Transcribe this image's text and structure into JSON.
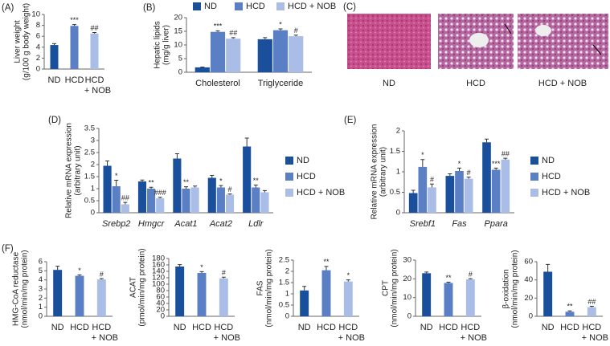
{
  "chart_data": [
    {
      "type": "bar",
      "panel_label": "(A)",
      "ylabel": "Liver weight",
      "yunit": "(g/100 g body weight)",
      "categories": [
        "ND",
        "HCD",
        [
          "HCD",
          "+ NOB"
        ]
      ],
      "values": [
        4.4,
        7.9,
        6.5
      ],
      "errors": [
        0.25,
        0.25,
        0.2
      ],
      "colors": [
        "#1a4f9c",
        "#5b7fc4",
        "#a9bde6"
      ],
      "marks": [
        null,
        "***",
        "##"
      ],
      "ylim": [
        0,
        10
      ],
      "yticks": [
        0,
        2,
        4,
        6,
        8,
        10
      ]
    },
    {
      "type": "grouped_bar",
      "panel_label": "(B)",
      "ylabel": "Hepatic lipids",
      "yunit": "(mg/g liver)",
      "legend": "top",
      "categories": [
        "Cholesterol",
        "Triglyceride"
      ],
      "series": [
        {
          "name": "ND",
          "color": "#1a4f9c",
          "values": [
            1.8,
            12.1
          ],
          "errors": [
            0.1,
            0.6
          ],
          "marks": [
            null,
            null
          ]
        },
        {
          "name": "HCD",
          "color": "#5b7fc4",
          "values": [
            14.8,
            15.4
          ],
          "errors": [
            0.4,
            0.5
          ],
          "marks": [
            "***",
            "*"
          ]
        },
        {
          "name": "HCD + NOB",
          "color": "#a9bde6",
          "values": [
            12.3,
            13.2
          ],
          "errors": [
            0.4,
            0.4
          ],
          "marks": [
            "##",
            "#"
          ]
        }
      ],
      "ylim": [
        0,
        20
      ],
      "yticks": [
        0,
        5,
        10,
        15,
        20
      ]
    },
    {
      "type": "grouped_bar",
      "panel_label": "(D)",
      "ylabel": "Relative mRNA expression",
      "yunit": "(arbitrary unit)",
      "legend": "right",
      "italic_categories": true,
      "categories": [
        "Srebp2",
        "Hmgcr",
        "Acat1",
        "Acat2",
        "Ldlr"
      ],
      "series": [
        {
          "name": "ND",
          "color": "#1a4f9c",
          "values": [
            1.95,
            1.3,
            2.25,
            1.45,
            2.75
          ],
          "errors": [
            0.2,
            0.06,
            0.2,
            0.1,
            0.35
          ],
          "marks": [
            null,
            null,
            null,
            null,
            null
          ]
        },
        {
          "name": "HCD",
          "color": "#5b7fc4",
          "values": [
            1.1,
            1.0,
            1.0,
            1.05,
            1.05
          ],
          "errors": [
            0.25,
            0.06,
            0.08,
            0.08,
            0.1
          ],
          "marks": [
            "*",
            "**",
            "**",
            "*",
            "**"
          ]
        },
        {
          "name": "HCD + NOB",
          "color": "#a9bde6",
          "values": [
            0.35,
            0.6,
            1.05,
            0.75,
            0.85
          ],
          "errors": [
            0.08,
            0.04,
            0.06,
            0.03,
            0.07
          ],
          "marks": [
            "##",
            "###",
            null,
            "#",
            null
          ]
        }
      ],
      "ylim": [
        0,
        3.5
      ],
      "yticks": [
        0,
        0.5,
        1,
        1.5,
        2,
        2.5,
        3,
        3.5
      ]
    },
    {
      "type": "grouped_bar",
      "panel_label": "(E)",
      "ylabel": "Relative mRNA expression",
      "yunit": "(arbitrary unit)",
      "legend": "right",
      "italic_categories": true,
      "categories": [
        "Srebf1",
        "Fas",
        "Ppara"
      ],
      "series": [
        {
          "name": "ND",
          "color": "#1a4f9c",
          "values": [
            0.48,
            0.9,
            1.72
          ],
          "errors": [
            0.07,
            0.05,
            0.08
          ],
          "marks": [
            null,
            null,
            null
          ]
        },
        {
          "name": "HCD",
          "color": "#5b7fc4",
          "values": [
            1.12,
            1.02,
            1.05
          ],
          "errors": [
            0.18,
            0.07,
            0.04
          ],
          "marks": [
            "*",
            "*",
            "***"
          ]
        },
        {
          "name": "HCD + NOB",
          "color": "#a9bde6",
          "values": [
            0.62,
            0.83,
            1.3
          ],
          "errors": [
            0.08,
            0.04,
            0.03
          ],
          "marks": [
            "#",
            "#",
            "##"
          ]
        }
      ],
      "ylim": [
        0,
        2
      ],
      "yticks": [
        0,
        0.5,
        1,
        1.5,
        2
      ]
    },
    {
      "type": "bar",
      "panel_label": "(F)",
      "ylabel": "HMG-CoA reductase",
      "yunit": "(nmol/min/mg protein)",
      "categories": [
        "ND",
        "HCD",
        [
          "HCD",
          "+ NOB"
        ]
      ],
      "values": [
        5.1,
        4.45,
        4.05
      ],
      "errors": [
        0.4,
        0.1,
        0.1
      ],
      "colors": [
        "#1a4f9c",
        "#5b7fc4",
        "#a9bde6"
      ],
      "marks": [
        null,
        "*",
        "#"
      ],
      "ylim": [
        0,
        6
      ],
      "yticks": [
        0,
        1,
        2,
        3,
        4,
        5,
        6
      ]
    },
    {
      "type": "bar",
      "ylabel": "ACAT",
      "yunit": "(pmol/min/mg protein)",
      "categories": [
        "ND",
        "HCD",
        [
          "HCD",
          "+ NOB"
        ]
      ],
      "values": [
        155,
        135,
        118
      ],
      "errors": [
        6,
        4,
        4
      ],
      "colors": [
        "#1a4f9c",
        "#5b7fc4",
        "#a9bde6"
      ],
      "marks": [
        null,
        "*",
        "#"
      ],
      "ylim": [
        0,
        180
      ],
      "yticks": [
        0,
        20,
        40,
        60,
        80,
        100,
        120,
        140,
        160,
        180
      ]
    },
    {
      "type": "bar",
      "ylabel": "FAS",
      "yunit": "(nmol/min/mg protein)",
      "categories": [
        "ND",
        "HCD",
        [
          "HCD",
          "+ NOB"
        ]
      ],
      "values": [
        1.15,
        2.05,
        1.55
      ],
      "errors": [
        0.18,
        0.17,
        0.07
      ],
      "colors": [
        "#1a4f9c",
        "#5b7fc4",
        "#a9bde6"
      ],
      "marks": [
        null,
        "**",
        "*"
      ],
      "ylim": [
        0,
        2.5
      ],
      "yticks": [
        0,
        0.5,
        1,
        1.5,
        2,
        2.5
      ]
    },
    {
      "type": "bar",
      "ylabel": "CPT",
      "yunit": "(nmol/min/mg protein)",
      "categories": [
        "ND",
        "HCD",
        [
          "HCD",
          "+ NOB"
        ]
      ],
      "values": [
        23,
        17.8,
        19.7
      ],
      "errors": [
        0.6,
        0.4,
        0.4
      ],
      "colors": [
        "#1a4f9c",
        "#5b7fc4",
        "#a9bde6"
      ],
      "marks": [
        null,
        "**",
        "#"
      ],
      "ylim": [
        0,
        30
      ],
      "yticks": [
        0,
        10,
        20,
        30
      ]
    },
    {
      "type": "bar",
      "ylabel": "β-oxidation",
      "yunit": "(nmol/min/mg protein)",
      "categories": [
        "ND",
        "HCD",
        [
          "HCD",
          "+ NOB"
        ]
      ],
      "values": [
        49,
        5,
        10
      ],
      "errors": [
        8,
        1,
        1
      ],
      "colors": [
        "#1a4f9c",
        "#5b7fc4",
        "#a9bde6"
      ],
      "marks": [
        null,
        "**",
        "##"
      ],
      "ylim": [
        0,
        60
      ],
      "yticks": [
        0,
        20,
        40,
        60
      ]
    }
  ],
  "histology": {
    "panel_label": "(C)",
    "images": [
      "ND",
      "HCD",
      "HCD + NOB"
    ]
  }
}
